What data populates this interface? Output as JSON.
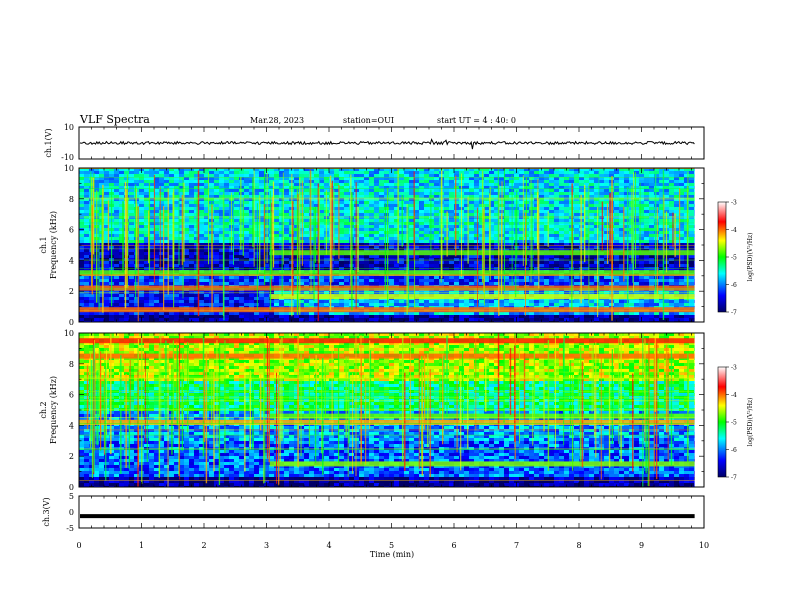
{
  "header": {
    "title": "VLF Spectra",
    "date": "Mar.28, 2023",
    "station": "station=OUI",
    "start": "start UT =  4 : 40: 0"
  },
  "chart_data": [
    {
      "type": "line",
      "name": "ch1-waveform",
      "ylabel": "ch.1(V)",
      "ylim": [
        -10,
        10
      ],
      "yticks": [
        10,
        -10
      ],
      "baseline": 0,
      "x_range_min": [
        0,
        9.85
      ]
    },
    {
      "type": "heatmap",
      "name": "ch1-spectrogram",
      "ylabel": "ch.1",
      "ylabel2": "Frequency (kHz)",
      "ylim": [
        0,
        10
      ],
      "yticks": [
        0,
        2,
        4,
        6,
        8,
        10
      ],
      "x_range_min": [
        0,
        9.85
      ],
      "transition_min": 3.05,
      "bands_khz": [
        {
          "f": 0.8,
          "level": -4.0,
          "start": 0,
          "end": 9.85
        },
        {
          "f": 1.65,
          "level": -4.5,
          "start": 3.05,
          "end": 9.85
        },
        {
          "f": 2.2,
          "level": -4.0,
          "start": 0,
          "end": 9.85
        },
        {
          "f": 3.2,
          "level": -4.8,
          "start": 0,
          "end": 9.85
        },
        {
          "f": 4.5,
          "level": -4.8,
          "start": 3.05,
          "end": 9.85
        }
      ]
    },
    {
      "type": "heatmap",
      "name": "ch2-spectrogram",
      "ylabel": "ch.2",
      "ylabel2": "Frequency (kHz)",
      "ylim": [
        0,
        10
      ],
      "yticks": [
        0,
        2,
        4,
        6,
        8,
        10
      ],
      "x_range_min": [
        0,
        9.85
      ],
      "transition_min": 3.05,
      "bands_khz": [
        {
          "f": 1.5,
          "level": -4.7,
          "start": 3.05,
          "end": 9.85
        },
        {
          "f": 4.2,
          "level": -4.2,
          "start": 0,
          "end": 9.85
        },
        {
          "f": 4.6,
          "level": -4.8,
          "start": 3.05,
          "end": 9.85
        },
        {
          "f": 8.5,
          "level": -4.0,
          "start": 0,
          "end": 9.85
        },
        {
          "f": 9.5,
          "level": -3.8,
          "start": 0,
          "end": 9.85
        }
      ]
    },
    {
      "type": "line",
      "name": "ch3-waveform",
      "ylabel": "ch.3(V)",
      "ylim": [
        -5,
        5
      ],
      "yticks": [
        5,
        0,
        -5
      ],
      "value": -1.3,
      "x_range_min": [
        0,
        9.85
      ]
    }
  ],
  "colorbar": {
    "label": "log(PSD)(V²/Hz)",
    "range": [
      -7,
      -3
    ],
    "ticks": [
      -3,
      -4,
      -5,
      -6,
      -7
    ],
    "tick_labels": [
      "-3",
      "-4",
      "-5",
      "-6",
      "-7"
    ],
    "stops": [
      "#000066",
      "#0000ff",
      "#00ffff",
      "#00ff00",
      "#ffff00",
      "#ff0000",
      "#ffffff"
    ]
  },
  "xaxis": {
    "label": "Time (min)",
    "ticks": [
      0,
      1,
      2,
      3,
      4,
      5,
      6,
      7,
      8,
      9,
      10
    ],
    "range": [
      0,
      10
    ]
  }
}
